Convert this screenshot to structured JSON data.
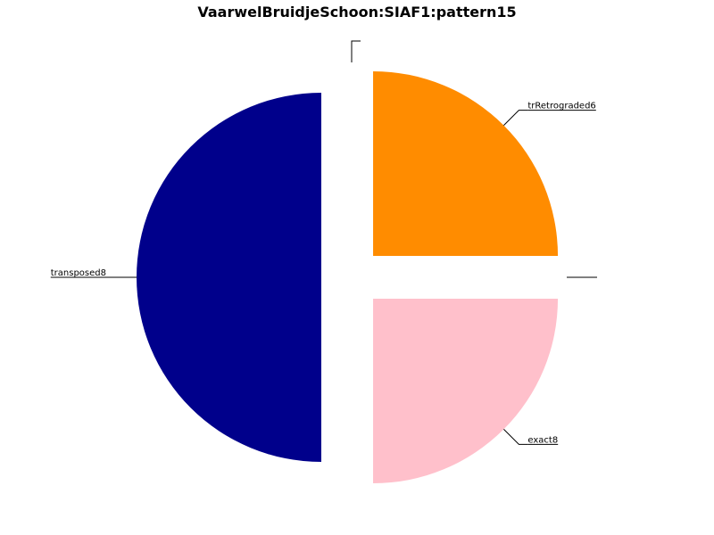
{
  "chart_data": {
    "type": "pie",
    "title": "VaarwelBruidjeSchoon:SIAF1:pattern15",
    "slices": [
      {
        "label": "",
        "value": 0,
        "color": "#000000"
      },
      {
        "label": "trRetrograded6",
        "value": 25,
        "color": "#FF8C00"
      },
      {
        "label": "",
        "value": 0,
        "color": "#000000"
      },
      {
        "label": "exact8",
        "value": 25,
        "color": "#FFC0CB"
      },
      {
        "label": "transposed8",
        "value": 50,
        "color": "#00008B"
      }
    ],
    "start": "top",
    "direction": "clockwise",
    "exploded": true,
    "legend": "none"
  }
}
